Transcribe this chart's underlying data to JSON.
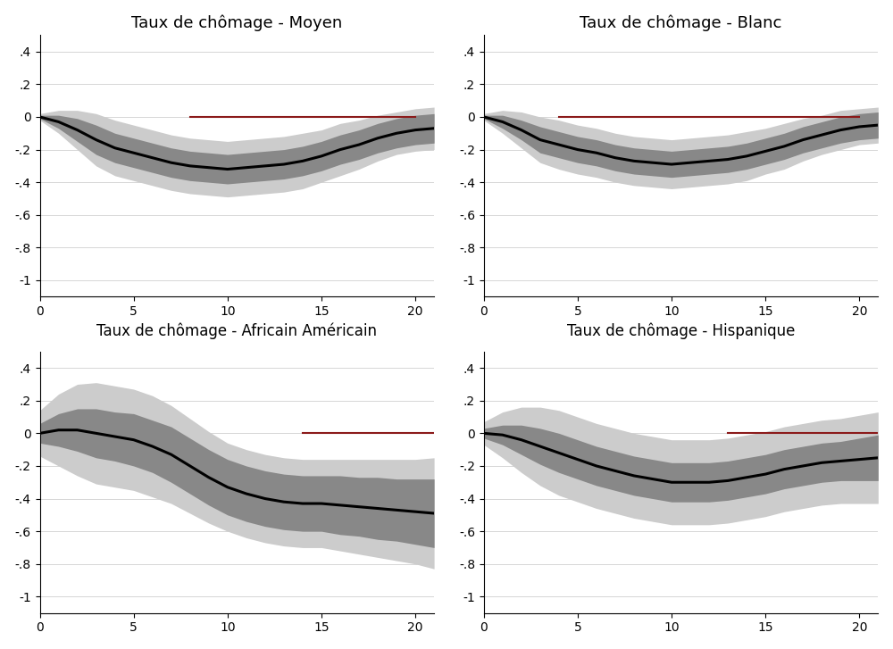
{
  "titles_top": [
    "Taux de chômage - Moyen",
    "Taux de chômage - Blanc"
  ],
  "xlabels_top": [
    "Taux de chômage - Africain Américain",
    "Taux de chômage - Hispanique"
  ],
  "xlim": [
    0,
    21
  ],
  "ylim": [
    -1.1,
    0.5
  ],
  "yticks": [
    -1,
    -0.8,
    -0.6,
    -0.4,
    -0.2,
    0,
    0.2,
    0.4
  ],
  "ytick_labels": [
    "-1",
    "-.8",
    "-.6",
    "-.4",
    "-.2",
    "0",
    ".2",
    ".4"
  ],
  "xticks": [
    0,
    5,
    10,
    15,
    20
  ],
  "dark_gray": "#888888",
  "light_gray": "#cccccc",
  "line_color": "#000000",
  "zero_line_color": "#8b1a1a",
  "bg_color": "#ffffff",
  "mean1": [
    0,
    -0.03,
    -0.08,
    -0.14,
    -0.19,
    -0.22,
    -0.25,
    -0.28,
    -0.3,
    -0.31,
    -0.32,
    -0.31,
    -0.3,
    -0.29,
    -0.27,
    -0.24,
    -0.2,
    -0.17,
    -0.13,
    -0.1,
    -0.08,
    -0.07
  ],
  "std1_inner": [
    0.01,
    0.04,
    0.07,
    0.09,
    0.09,
    0.09,
    0.09,
    0.09,
    0.09,
    0.09,
    0.09,
    0.09,
    0.09,
    0.09,
    0.09,
    0.09,
    0.09,
    0.09,
    0.09,
    0.09,
    0.09,
    0.09
  ],
  "std1_outer": [
    0.02,
    0.07,
    0.12,
    0.16,
    0.17,
    0.17,
    0.17,
    0.17,
    0.17,
    0.17,
    0.17,
    0.17,
    0.17,
    0.17,
    0.17,
    0.16,
    0.16,
    0.15,
    0.14,
    0.13,
    0.13,
    0.13
  ],
  "red1": [
    8,
    20
  ],
  "mean2": [
    0,
    -0.03,
    -0.08,
    -0.14,
    -0.17,
    -0.2,
    -0.22,
    -0.25,
    -0.27,
    -0.28,
    -0.29,
    -0.28,
    -0.27,
    -0.26,
    -0.24,
    -0.21,
    -0.18,
    -0.14,
    -0.11,
    -0.08,
    -0.06,
    -0.05
  ],
  "std2_inner": [
    0.01,
    0.04,
    0.06,
    0.08,
    0.08,
    0.08,
    0.08,
    0.08,
    0.08,
    0.08,
    0.08,
    0.08,
    0.08,
    0.08,
    0.08,
    0.08,
    0.08,
    0.08,
    0.08,
    0.08,
    0.08,
    0.08
  ],
  "std2_outer": [
    0.02,
    0.07,
    0.11,
    0.14,
    0.15,
    0.15,
    0.15,
    0.15,
    0.15,
    0.15,
    0.15,
    0.15,
    0.15,
    0.15,
    0.15,
    0.14,
    0.14,
    0.13,
    0.12,
    0.12,
    0.11,
    0.11
  ],
  "red2": [
    4,
    20
  ],
  "mean3": [
    0,
    0.02,
    0.02,
    0.0,
    -0.02,
    -0.04,
    -0.08,
    -0.13,
    -0.2,
    -0.27,
    -0.33,
    -0.37,
    -0.4,
    -0.42,
    -0.43,
    -0.43,
    -0.44,
    -0.45,
    -0.46,
    -0.47,
    -0.48,
    -0.49
  ],
  "std3_inner": [
    0.06,
    0.1,
    0.13,
    0.15,
    0.15,
    0.16,
    0.16,
    0.17,
    0.17,
    0.17,
    0.17,
    0.17,
    0.17,
    0.17,
    0.17,
    0.17,
    0.18,
    0.18,
    0.19,
    0.19,
    0.2,
    0.21
  ],
  "std3_outer": [
    0.14,
    0.22,
    0.28,
    0.31,
    0.31,
    0.31,
    0.31,
    0.3,
    0.29,
    0.28,
    0.27,
    0.27,
    0.27,
    0.27,
    0.27,
    0.27,
    0.28,
    0.29,
    0.3,
    0.31,
    0.32,
    0.34
  ],
  "red3": [
    14,
    21
  ],
  "mean4": [
    0,
    -0.01,
    -0.04,
    -0.08,
    -0.12,
    -0.16,
    -0.2,
    -0.23,
    -0.26,
    -0.28,
    -0.3,
    -0.3,
    -0.3,
    -0.29,
    -0.27,
    -0.25,
    -0.22,
    -0.2,
    -0.18,
    -0.17,
    -0.16,
    -0.15
  ],
  "std4_inner": [
    0.03,
    0.06,
    0.09,
    0.11,
    0.12,
    0.12,
    0.12,
    0.12,
    0.12,
    0.12,
    0.12,
    0.12,
    0.12,
    0.12,
    0.12,
    0.12,
    0.12,
    0.12,
    0.12,
    0.12,
    0.13,
    0.14
  ],
  "std4_outer": [
    0.07,
    0.14,
    0.2,
    0.24,
    0.26,
    0.26,
    0.26,
    0.26,
    0.26,
    0.26,
    0.26,
    0.26,
    0.26,
    0.26,
    0.26,
    0.26,
    0.26,
    0.26,
    0.26,
    0.26,
    0.27,
    0.28
  ],
  "red4": [
    13,
    21
  ]
}
